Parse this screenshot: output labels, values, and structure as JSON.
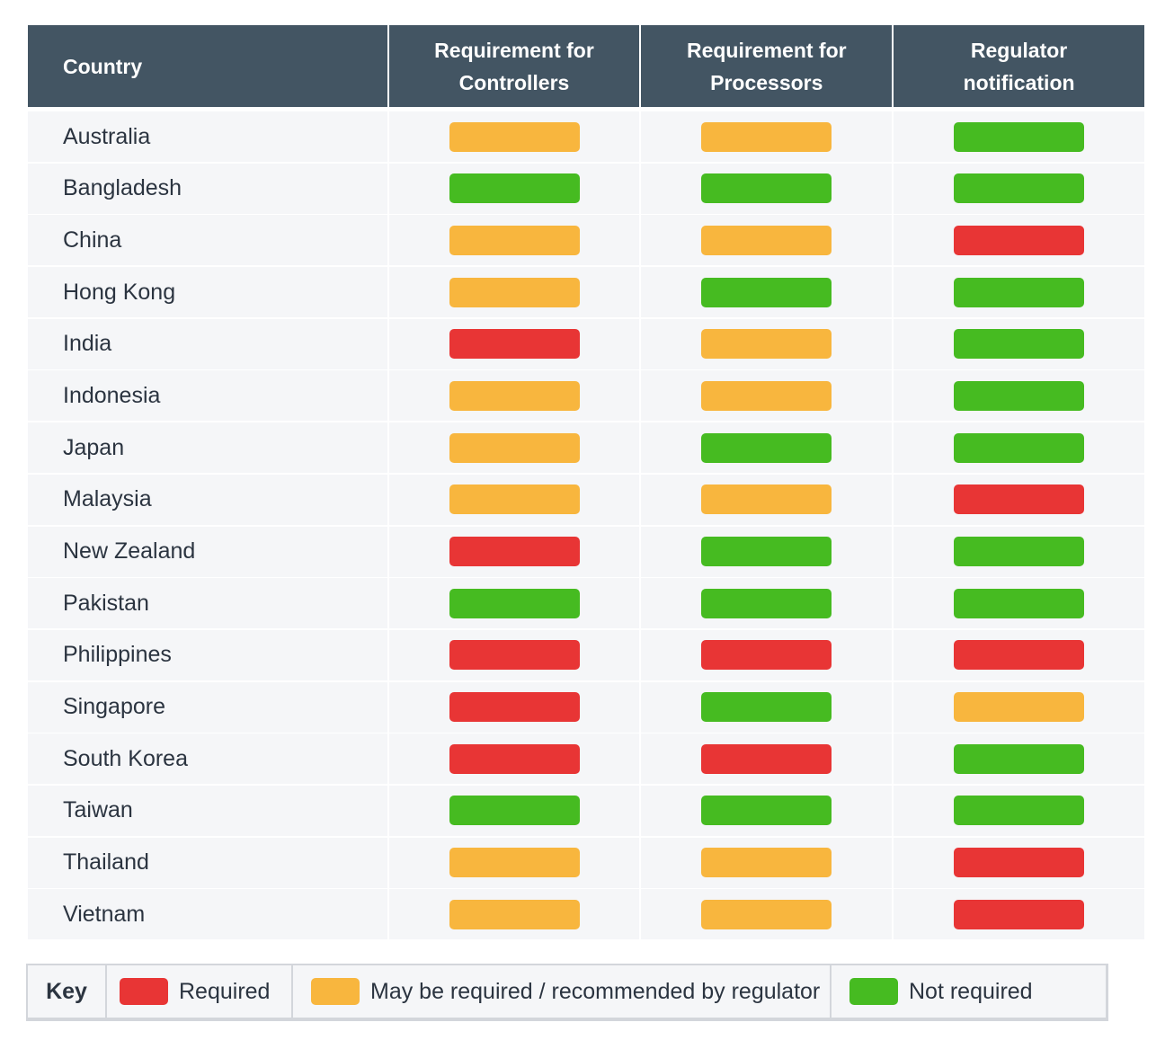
{
  "colors": {
    "header": "#435563",
    "required": "#e83535",
    "may": "#f8b63e",
    "not": "#46bb21"
  },
  "chart_data": {
    "type": "table",
    "columns": [
      "Country",
      "Requirement for Controllers",
      "Requirement for Processors",
      "Regulator notification"
    ],
    "rows": [
      {
        "country": "Australia",
        "values": [
          "may",
          "may",
          "not"
        ]
      },
      {
        "country": "Bangladesh",
        "values": [
          "not",
          "not",
          "not"
        ]
      },
      {
        "country": "China",
        "values": [
          "may",
          "may",
          "required"
        ]
      },
      {
        "country": "Hong Kong",
        "values": [
          "may",
          "not",
          "not"
        ]
      },
      {
        "country": "India",
        "values": [
          "required",
          "may",
          "not"
        ]
      },
      {
        "country": "Indonesia",
        "values": [
          "may",
          "may",
          "not"
        ]
      },
      {
        "country": "Japan",
        "values": [
          "may",
          "not",
          "not"
        ]
      },
      {
        "country": "Malaysia",
        "values": [
          "may",
          "may",
          "required"
        ]
      },
      {
        "country": "New Zealand",
        "values": [
          "required",
          "not",
          "not"
        ]
      },
      {
        "country": "Pakistan",
        "values": [
          "not",
          "not",
          "not"
        ]
      },
      {
        "country": "Philippines",
        "values": [
          "required",
          "required",
          "required"
        ]
      },
      {
        "country": "Singapore",
        "values": [
          "required",
          "not",
          "may"
        ]
      },
      {
        "country": "South Korea",
        "values": [
          "required",
          "required",
          "not"
        ]
      },
      {
        "country": "Taiwan",
        "values": [
          "not",
          "not",
          "not"
        ]
      },
      {
        "country": "Thailand",
        "values": [
          "may",
          "may",
          "required"
        ]
      },
      {
        "country": "Vietnam",
        "values": [
          "may",
          "may",
          "required"
        ]
      }
    ],
    "legend": {
      "title": "Key",
      "required": "Required",
      "may": "May be required / recommended by regulator",
      "not": "Not required"
    }
  }
}
